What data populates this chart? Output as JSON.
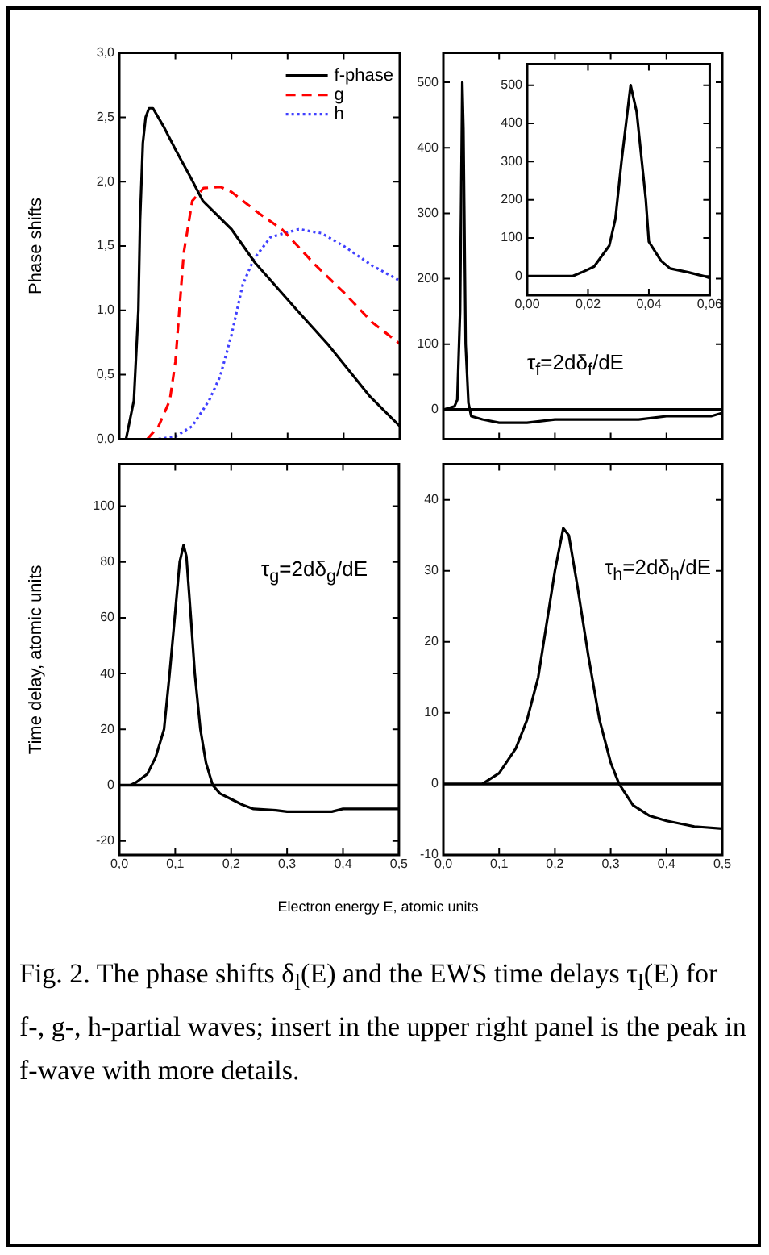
{
  "chart_data": [
    {
      "type": "line",
      "ylabel": "Phase shifts",
      "xlim": [
        0,
        0.5
      ],
      "xticks": [
        {
          "value": 0,
          "label": null
        },
        {
          "value": 0.1,
          "label": null
        },
        {
          "value": 0.2,
          "label": null
        },
        {
          "value": 0.3,
          "label": null
        },
        {
          "value": 0.4,
          "label": null
        },
        {
          "value": 0.5,
          "label": null
        }
      ],
      "ylim": [
        0,
        3
      ],
      "yticks": [
        {
          "value": 0,
          "label": "0,0"
        },
        {
          "value": 0.5,
          "label": "0,5"
        },
        {
          "value": 1,
          "label": "1,0"
        },
        {
          "value": 1.5,
          "label": "1,5"
        },
        {
          "value": 2,
          "label": "2,0"
        },
        {
          "value": 2.5,
          "label": "2,5"
        },
        {
          "value": 3,
          "label": "3,0"
        }
      ],
      "tick_labels": "y",
      "legend": "top right",
      "marker": "none",
      "series": [
        {
          "name": "f-phase",
          "color": "#000000",
          "line_style": "solid",
          "x": [
            0.012,
            0.026,
            0.034,
            0.037,
            0.042,
            0.047,
            0.053,
            0.06,
            0.08,
            0.1,
            0.125,
            0.149,
            0.2,
            0.242,
            0.317,
            0.373,
            0.447,
            0.5
          ],
          "values": [
            0,
            0.3,
            1.0,
            1.7,
            2.3,
            2.5,
            2.57,
            2.57,
            2.42,
            2.25,
            2.05,
            1.85,
            1.63,
            1.37,
            1.0,
            0.73,
            0.33,
            0.1
          ]
        },
        {
          "name": "g",
          "color": "#ff0000",
          "line_style": "dashed",
          "x": [
            0.05,
            0.07,
            0.09,
            0.1,
            0.107,
            0.115,
            0.13,
            0.15,
            0.18,
            0.2,
            0.25,
            0.29,
            0.35,
            0.4,
            0.45,
            0.5
          ],
          "values": [
            0,
            0.1,
            0.3,
            0.6,
            1.0,
            1.45,
            1.85,
            1.95,
            1.96,
            1.92,
            1.75,
            1.63,
            1.35,
            1.14,
            0.91,
            0.74
          ]
        },
        {
          "name": "h",
          "color": "#4040ff",
          "line_style": "dotted",
          "x": [
            0.07,
            0.1,
            0.13,
            0.16,
            0.18,
            0.2,
            0.22,
            0.24,
            0.27,
            0.32,
            0.36,
            0.4,
            0.45,
            0.5
          ],
          "values": [
            0,
            0.02,
            0.1,
            0.3,
            0.49,
            0.81,
            1.2,
            1.4,
            1.57,
            1.63,
            1.6,
            1.5,
            1.35,
            1.23
          ]
        }
      ]
    },
    {
      "type": "line",
      "xlim": [
        0,
        0.5
      ],
      "xticks": [
        {
          "value": 0,
          "label": null
        },
        {
          "value": 0.1,
          "label": null
        },
        {
          "value": 0.2,
          "label": null
        },
        {
          "value": 0.3,
          "label": null
        },
        {
          "value": 0.4,
          "label": null
        },
        {
          "value": 0.5,
          "label": null
        }
      ],
      "ylim": [
        -45,
        545
      ],
      "yticks": [
        0,
        100,
        200,
        300,
        400,
        500
      ],
      "tick_labels": "y",
      "marker": "none",
      "ref_lines": [
        {
          "axis": "y",
          "value": 0
        }
      ],
      "annotations": [
        "τ$_{f}$=2dδ$_{f}$/dE"
      ],
      "series": [
        {
          "color": "#000000",
          "x": [
            0,
            0.02,
            0.025,
            0.03,
            0.034,
            0.036,
            0.04,
            0.045,
            0.05,
            0.07,
            0.1,
            0.15,
            0.2,
            0.35,
            0.4,
            0.48,
            0.5
          ],
          "values": [
            0,
            5,
            15,
            150,
            500,
            430,
            100,
            10,
            -10,
            -15,
            -20,
            -20,
            -15,
            -15,
            -10,
            -10,
            -5
          ]
        }
      ]
    },
    {
      "type": "line",
      "xlim": [
        0,
        0.06
      ],
      "xticks": [
        {
          "value": 0,
          "label": "0,00"
        },
        {
          "value": 0.02,
          "label": "0,02"
        },
        {
          "value": 0.04,
          "label": "0,04"
        },
        {
          "value": 0.06,
          "label": "0,06"
        }
      ],
      "ylim": [
        -50,
        555
      ],
      "yticks": [
        0,
        100,
        200,
        300,
        400,
        500
      ],
      "marker": "none",
      "series": [
        {
          "color": "#000000",
          "x": [
            0,
            0.015,
            0.018,
            0.022,
            0.027,
            0.029,
            0.031,
            0.034,
            0.036,
            0.039,
            0.04,
            0.044,
            0.047,
            0.053,
            0.058,
            0.06
          ],
          "values": [
            0,
            0,
            10,
            25,
            80,
            150,
            300,
            500,
            430,
            200,
            90,
            40,
            20,
            10,
            0,
            -5
          ]
        }
      ]
    },
    {
      "type": "line",
      "ylabel": "Time delay, atomic units",
      "xlabel": "Electron energy E, atomic units",
      "xlim": [
        0,
        0.5
      ],
      "xticks": [
        {
          "value": 0,
          "label": "0,0"
        },
        {
          "value": 0.1,
          "label": "0,1"
        },
        {
          "value": 0.2,
          "label": "0,2"
        },
        {
          "value": 0.3,
          "label": "0,3"
        },
        {
          "value": 0.4,
          "label": "0,4"
        },
        {
          "value": 0.5,
          "label": "0,5"
        }
      ],
      "ylim": [
        -25,
        115
      ],
      "yticks": [
        -20,
        0,
        20,
        40,
        60,
        80,
        100
      ],
      "marker": "none",
      "ref_lines": [
        {
          "axis": "y",
          "value": 0
        }
      ],
      "annotations": [
        "τ$_{g}$=2dδ$_{g}$/dE"
      ],
      "series": [
        {
          "color": "#000000",
          "x": [
            0.02,
            0.03,
            0.05,
            0.065,
            0.08,
            0.09,
            0.1,
            0.108,
            0.115,
            0.12,
            0.128,
            0.135,
            0.145,
            0.155,
            0.167,
            0.18,
            0.2,
            0.22,
            0.24,
            0.28,
            0.3,
            0.38,
            0.4,
            0.5
          ],
          "values": [
            0,
            1,
            4,
            10,
            20,
            40,
            62,
            80,
            86,
            82,
            60,
            40,
            20,
            8,
            0,
            -3,
            -5,
            -7,
            -8.5,
            -9,
            -9.5,
            -9.5,
            -8.5,
            -8.5
          ]
        }
      ]
    },
    {
      "type": "line",
      "xlim": [
        0,
        0.5
      ],
      "xticks": [
        {
          "value": 0,
          "label": "0,0"
        },
        {
          "value": 0.1,
          "label": "0,1"
        },
        {
          "value": 0.2,
          "label": "0,2"
        },
        {
          "value": 0.3,
          "label": "0,3"
        },
        {
          "value": 0.4,
          "label": "0,4"
        },
        {
          "value": 0.5,
          "label": "0,5"
        }
      ],
      "ylim": [
        -10,
        45
      ],
      "yticks": [
        -10,
        0,
        10,
        20,
        30,
        40
      ],
      "marker": "none",
      "ref_lines": [
        {
          "axis": "y",
          "value": 0
        }
      ],
      "annotations": [
        "τ$_{h}$=2dδ$_{h}$/dE",
        "Fig. 2. The phase shifts δ$_{l}$(E) and the EWS time delays τ$_{l}$(E) for f-, g-, h-partial waves; insert in the upper right panel is the peak in f-wave with more details."
      ],
      "series": [
        {
          "color": "#000000",
          "x": [
            0.07,
            0.1,
            0.13,
            0.15,
            0.17,
            0.19,
            0.2,
            0.215,
            0.225,
            0.24,
            0.26,
            0.28,
            0.3,
            0.315,
            0.34,
            0.37,
            0.4,
            0.45,
            0.5
          ],
          "values": [
            0,
            1.5,
            5,
            9,
            15,
            25,
            30,
            36,
            35,
            28,
            18,
            9,
            3,
            0,
            -3,
            -4.5,
            -5.2,
            -6,
            -6.3
          ]
        }
      ]
    }
  ]
}
